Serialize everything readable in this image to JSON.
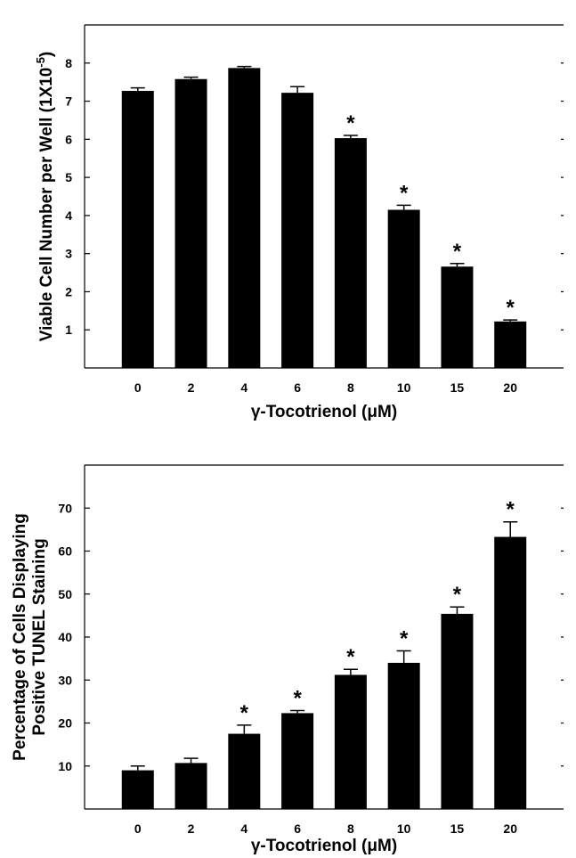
{
  "chart_data": [
    {
      "type": "bar",
      "title": "",
      "xlabel": "γ-Tocotrienol (μM)",
      "ylabel": "Viable Cell Number per Well (1X10",
      "ylabel_exponent": "-5",
      "ylabel_close": ")",
      "categories": [
        "0",
        "2",
        "4",
        "6",
        "8",
        "10",
        "15",
        "20"
      ],
      "values": [
        7.27,
        7.58,
        7.87,
        7.22,
        6.03,
        4.15,
        2.66,
        1.22
      ],
      "errors": [
        0.08,
        0.05,
        0.04,
        0.16,
        0.07,
        0.12,
        0.08,
        0.04
      ],
      "significant": [
        "",
        "",
        "",
        "",
        "*",
        "*",
        "*",
        "*"
      ],
      "ylim": [
        0,
        9
      ],
      "yticks": [
        "1",
        "2",
        "3",
        "4",
        "5",
        "6",
        "7",
        "8"
      ],
      "grid": false
    },
    {
      "type": "bar",
      "title": "",
      "xlabel": "γ-Tocotrienol (μM)",
      "ylabel_lines": [
        "Percentage of Cells Displaying",
        "Positive TUNEL Staining"
      ],
      "categories": [
        "0",
        "2",
        "4",
        "6",
        "8",
        "10",
        "15",
        "20"
      ],
      "values": [
        9.0,
        10.7,
        17.5,
        22.3,
        31.2,
        34.0,
        45.4,
        63.3
      ],
      "errors": [
        1.0,
        1.1,
        2.0,
        0.6,
        1.3,
        2.8,
        1.6,
        3.5
      ],
      "significant": [
        "",
        "",
        "*",
        "*",
        "*",
        "*",
        "*",
        "*"
      ],
      "ylim": [
        0,
        80
      ],
      "yticks": [
        "10",
        "20",
        "30",
        "40",
        "50",
        "60",
        "70"
      ],
      "grid": false
    }
  ]
}
